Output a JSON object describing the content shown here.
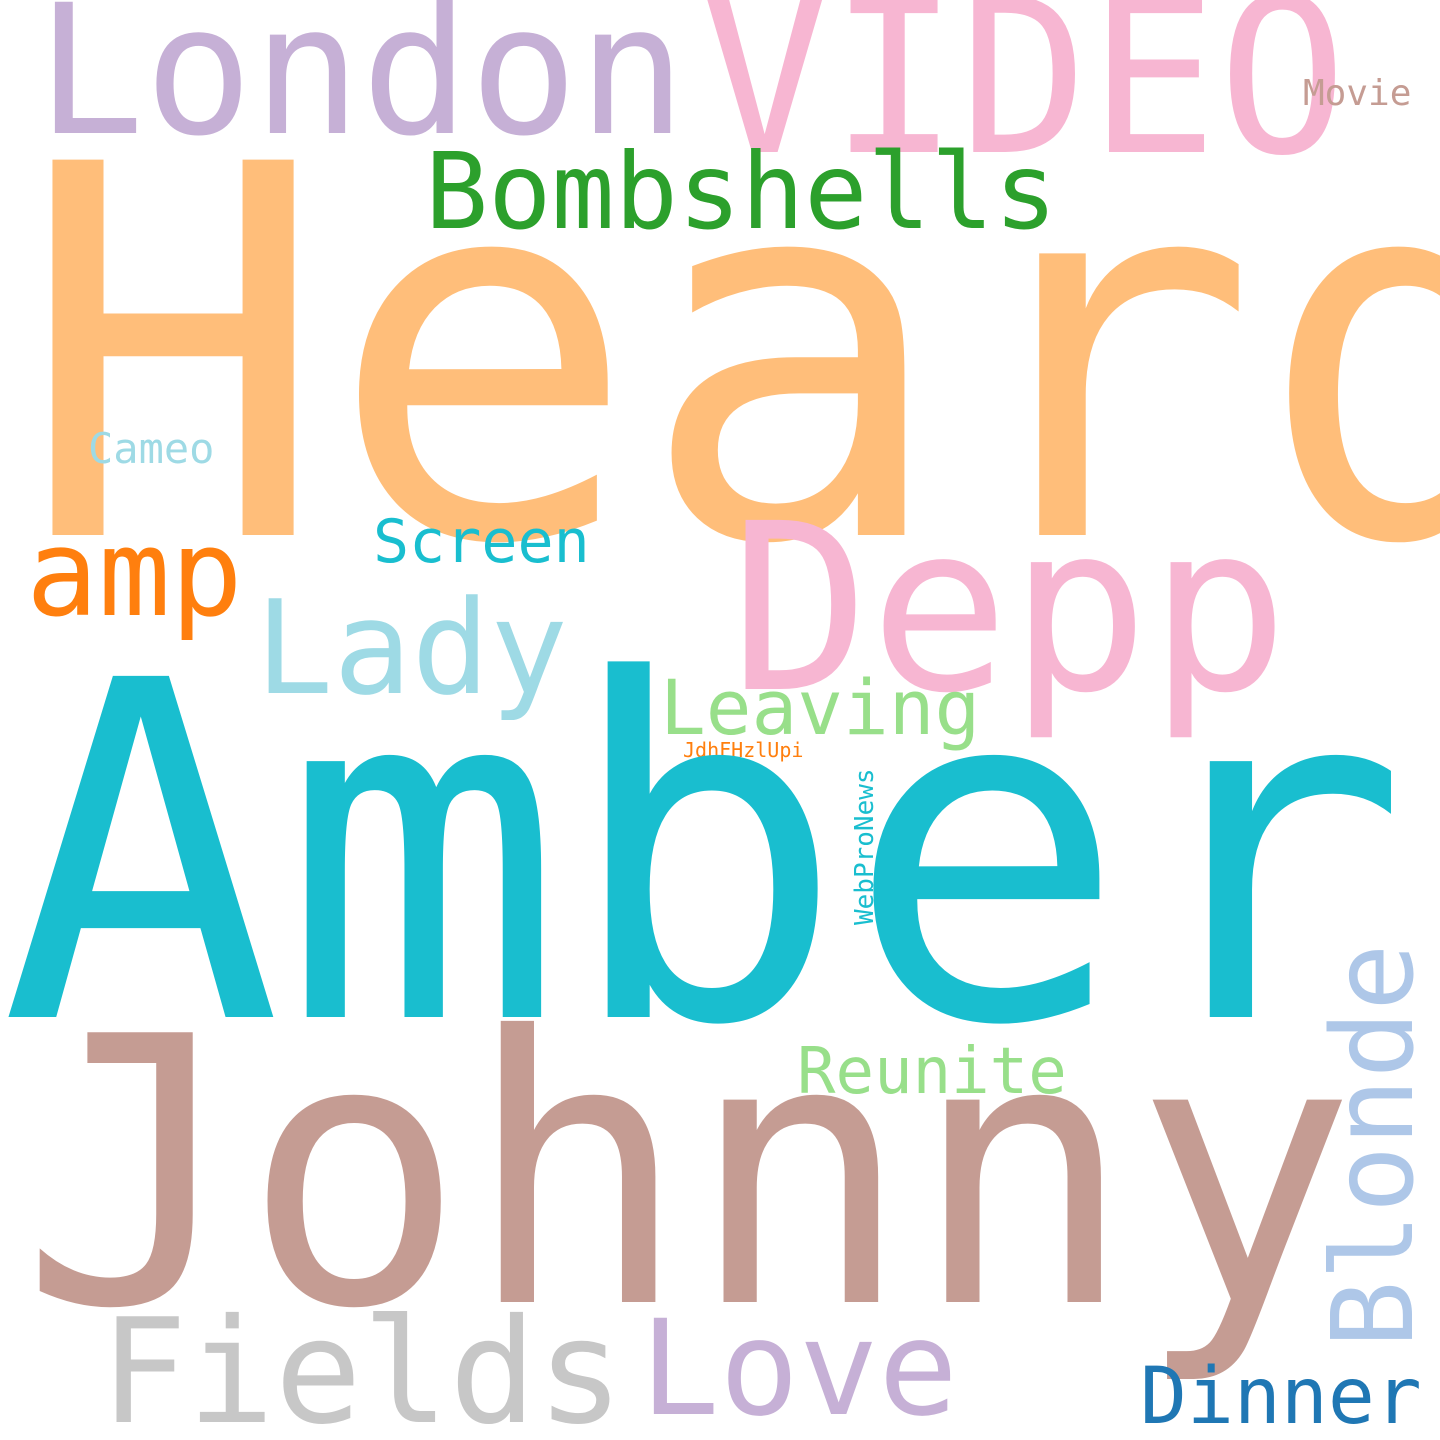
{
  "words": {
    "heard": {
      "text": "Heard",
      "color": "#FFBE7A"
    },
    "amber": {
      "text": "Amber",
      "color": "#19BECF"
    },
    "johnny": {
      "text": "Johnny",
      "color": "#C59C93"
    },
    "depp": {
      "text": "Depp",
      "color": "#F7B6D2"
    },
    "london": {
      "text": "London",
      "color": "#C6B0D6"
    },
    "video": {
      "text": "VIDEO",
      "color": "#F7B6D2"
    },
    "bombshells": {
      "text": "Bombshells",
      "color": "#2CA02C"
    },
    "lady": {
      "text": "Lady",
      "color": "#9EDAE5"
    },
    "fields": {
      "text": "Fields",
      "color": "#C7C7C7"
    },
    "love": {
      "text": "Love",
      "color": "#C6B0D6"
    },
    "blonde": {
      "text": "Blonde",
      "color": "#AEC7E8"
    },
    "amp": {
      "text": "amp",
      "color": "#FF7F0E"
    },
    "leaving": {
      "text": "Leaving",
      "color": "#98DF8A"
    },
    "reunite": {
      "text": "Reunite",
      "color": "#98DF8A"
    },
    "screen": {
      "text": "Screen",
      "color": "#19BECF"
    },
    "dinner": {
      "text": "Dinner",
      "color": "#1F77B4"
    },
    "cameo": {
      "text": "Cameo",
      "color": "#9EDAE5"
    },
    "movie": {
      "text": "Movie",
      "color": "#C59C93"
    },
    "webpronews": {
      "text": "WebProNews",
      "color": "#19BECF"
    },
    "jdhfhzlupi": {
      "text": "JdhFHzlUpi",
      "color": "#FF7F0E"
    }
  }
}
